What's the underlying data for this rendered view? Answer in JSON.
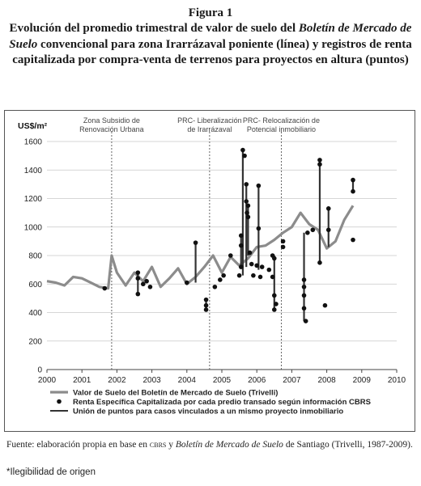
{
  "figure": {
    "label": "Figura 1",
    "title_part1": "Evolución del promedio trimestral de valor de suelo del ",
    "title_italic1": "Boletín de Mercado de Suelo",
    "title_part2": " convencional para zona Irarrázaval poniente (línea) y registros de renta capitalizada por compra-venta de terrenos para proyectos en altura (puntos)"
  },
  "source": {
    "prefix": "Fuente: elaboración propia en base en ",
    "cbrs": "cbrs",
    "mid": " y ",
    "italic": "Boletín de Mercado de Suelo",
    "suffix": " de Santiago (Trivelli, 1987-2009)."
  },
  "note": "*Ilegibilidad de origen",
  "chart_data": {
    "type": "line",
    "ylabel": "US$/m²",
    "xlim": [
      2000,
      2010
    ],
    "ylim": [
      0,
      1600
    ],
    "x_ticks": [
      "2000",
      "2001",
      "2002",
      "2003",
      "2004",
      "2005",
      "2006",
      "2007",
      "2008",
      "2009",
      "2010"
    ],
    "y_ticks": [
      "0",
      "200",
      "400",
      "600",
      "800",
      "1000",
      "1200",
      "1400",
      "1600"
    ],
    "grid": true,
    "legend_position": "bottom",
    "annotations": [
      {
        "x": 2001.85,
        "label_lines": [
          "Zona Subsidio de",
          "Renovación Urbana"
        ]
      },
      {
        "x": 2004.65,
        "label_lines": [
          "PRC- Liberalización",
          "de Irarrázaval"
        ]
      },
      {
        "x": 2006.7,
        "label_lines": [
          "PRC- Relocalización de",
          "Potencial inmobiliario"
        ]
      }
    ],
    "line_series": {
      "name": "Valor de Suelo del Boletín de Mercado de Suelo (Trivelli)",
      "color": "#8c8c8c",
      "x": [
        2000.0,
        2000.25,
        2000.5,
        2000.75,
        2001.0,
        2001.25,
        2001.5,
        2001.75,
        2001.85,
        2002.0,
        2002.25,
        2002.5,
        2002.75,
        2003.0,
        2003.25,
        2003.5,
        2003.75,
        2004.0,
        2004.25,
        2004.5,
        2004.75,
        2005.0,
        2005.25,
        2005.5,
        2005.75,
        2006.0,
        2006.25,
        2006.5,
        2006.75,
        2007.0,
        2007.25,
        2007.5,
        2007.75,
        2008.0,
        2008.25,
        2008.5,
        2008.75
      ],
      "y": [
        620,
        610,
        590,
        650,
        640,
        610,
        580,
        570,
        800,
        680,
        590,
        680,
        620,
        720,
        580,
        640,
        710,
        600,
        650,
        720,
        800,
        680,
        790,
        730,
        780,
        860,
        870,
        910,
        960,
        1000,
        1100,
        1020,
        980,
        850,
        900,
        1050,
        1150
      ]
    },
    "dots_series": {
      "name": "Renta Específica Capitalizada por cada predio transado según información CBRS",
      "color": "#111111",
      "points": [
        [
          2001.65,
          570
        ],
        [
          2002.6,
          640
        ],
        [
          2002.6,
          680
        ],
        [
          2002.6,
          530
        ],
        [
          2002.75,
          600
        ],
        [
          2002.85,
          620
        ],
        [
          2002.95,
          580
        ],
        [
          2004.0,
          610
        ],
        [
          2004.25,
          890
        ],
        [
          2004.55,
          490
        ],
        [
          2004.55,
          450
        ],
        [
          2004.55,
          420
        ],
        [
          2004.8,
          580
        ],
        [
          2004.95,
          630
        ],
        [
          2005.05,
          660
        ],
        [
          2005.25,
          800
        ],
        [
          2005.5,
          660
        ],
        [
          2005.55,
          870
        ],
        [
          2005.55,
          940
        ],
        [
          2005.55,
          720
        ],
        [
          2005.6,
          1540
        ],
        [
          2005.65,
          1500
        ],
        [
          2005.7,
          1300
        ],
        [
          2005.7,
          1180
        ],
        [
          2005.72,
          1100
        ],
        [
          2005.75,
          1150
        ],
        [
          2005.75,
          1070
        ],
        [
          2005.8,
          820
        ],
        [
          2005.85,
          740
        ],
        [
          2005.9,
          660
        ],
        [
          2006.0,
          730
        ],
        [
          2006.05,
          1290
        ],
        [
          2006.05,
          990
        ],
        [
          2006.1,
          650
        ],
        [
          2006.15,
          720
        ],
        [
          2006.35,
          700
        ],
        [
          2006.45,
          800
        ],
        [
          2006.45,
          650
        ],
        [
          2006.5,
          780
        ],
        [
          2006.5,
          520
        ],
        [
          2006.5,
          420
        ],
        [
          2006.55,
          460
        ],
        [
          2006.75,
          900
        ],
        [
          2006.75,
          860
        ],
        [
          2007.35,
          630
        ],
        [
          2007.35,
          580
        ],
        [
          2007.35,
          520
        ],
        [
          2007.35,
          430
        ],
        [
          2007.4,
          340
        ],
        [
          2007.45,
          960
        ],
        [
          2007.6,
          980
        ],
        [
          2007.8,
          1470
        ],
        [
          2007.8,
          1440
        ],
        [
          2007.8,
          750
        ],
        [
          2007.95,
          450
        ],
        [
          2008.05,
          1130
        ],
        [
          2008.05,
          980
        ],
        [
          2008.75,
          1330
        ],
        [
          2008.75,
          1250
        ],
        [
          2008.75,
          910
        ]
      ]
    },
    "connector_series": {
      "name": "Unión de puntos para casos vinculados a un mismo proyecto inmobiliario",
      "color": "#333333",
      "segments": [
        [
          [
            2002.6,
            530
          ],
          [
            2002.6,
            680
          ]
        ],
        [
          [
            2004.25,
            610
          ],
          [
            2004.25,
            890
          ]
        ],
        [
          [
            2004.55,
            420
          ],
          [
            2004.55,
            490
          ]
        ],
        [
          [
            2005.55,
            720
          ],
          [
            2005.55,
            940
          ]
        ],
        [
          [
            2005.6,
            660
          ],
          [
            2005.6,
            1540
          ]
        ],
        [
          [
            2005.7,
            720
          ],
          [
            2005.7,
            1300
          ]
        ],
        [
          [
            2005.75,
            800
          ],
          [
            2005.75,
            1150
          ]
        ],
        [
          [
            2006.05,
            700
          ],
          [
            2006.05,
            1290
          ]
        ],
        [
          [
            2006.5,
            420
          ],
          [
            2006.5,
            800
          ]
        ],
        [
          [
            2007.35,
            340
          ],
          [
            2007.35,
            960
          ]
        ],
        [
          [
            2007.8,
            750
          ],
          [
            2007.8,
            1470
          ]
        ],
        [
          [
            2008.05,
            860
          ],
          [
            2008.05,
            1130
          ]
        ],
        [
          [
            2008.75,
            1250
          ],
          [
            2008.75,
            1330
          ]
        ]
      ]
    }
  }
}
